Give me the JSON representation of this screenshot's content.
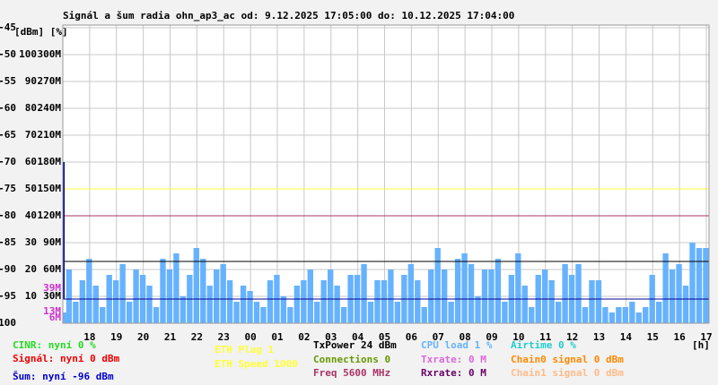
{
  "chart_data": {
    "type": "bar",
    "title": "Signál a šum radia ohn_ap3_ac od: 9.12.2025 17:05:00 do: 10.12.2025 17:04:00",
    "y_header": "[dBm] [%]",
    "x_label": "[h]",
    "ylim": [
      -100,
      -45
    ],
    "yticks": [
      -45,
      -50,
      -55,
      -60,
      -65,
      -70,
      -75,
      -80,
      -85,
      -90,
      -95,
      -100
    ],
    "y2lim": [
      0,
      110
    ],
    "y2ticks": [
      10,
      20,
      30,
      40,
      50,
      60,
      70,
      80,
      90,
      100
    ],
    "y3lim": [
      0,
      330
    ],
    "y3ticks": [
      {
        "value": 30,
        "label": "30M"
      },
      {
        "value": 60,
        "label": "60M"
      },
      {
        "value": 90,
        "label": "90M"
      },
      {
        "value": 120,
        "label": "120M"
      },
      {
        "value": 150,
        "label": "150M"
      },
      {
        "value": 180,
        "label": "180M"
      },
      {
        "value": 210,
        "label": "210M"
      },
      {
        "value": 240,
        "label": "240M"
      },
      {
        "value": 270,
        "label": "270M"
      },
      {
        "value": 300,
        "label": "300M"
      }
    ],
    "y3_markers": {
      "color": "#cc33cc",
      "ticks": [
        {
          "value": 39,
          "label": "39M"
        },
        {
          "value": 13,
          "label": "13M"
        },
        {
          "value": 6,
          "label": "6M"
        }
      ]
    },
    "grid": true,
    "categories": [
      null,
      null,
      null,
      null,
      "18",
      null,
      null,
      null,
      "19",
      null,
      null,
      null,
      "20",
      null,
      null,
      null,
      "21",
      null,
      null,
      null,
      "22",
      null,
      null,
      null,
      "23",
      null,
      null,
      null,
      "00",
      null,
      null,
      null,
      "01",
      null,
      null,
      null,
      "02",
      null,
      null,
      null,
      "03",
      null,
      null,
      null,
      "04",
      null,
      null,
      null,
      "05",
      null,
      null,
      null,
      "06",
      null,
      null,
      null,
      "07",
      null,
      null,
      null,
      "08",
      null,
      null,
      null,
      "09",
      null,
      null,
      null,
      "10",
      null,
      null,
      null,
      "11",
      null,
      null,
      null,
      "12",
      null,
      null,
      null,
      "13",
      null,
      null,
      null,
      "14",
      null,
      null,
      null,
      "15",
      null,
      null,
      null,
      "16",
      null,
      null,
      null,
      "17"
    ],
    "color": "#66b2ff",
    "values": [
      -98,
      -90,
      -96,
      -92,
      -88,
      -93,
      -97,
      -91,
      -92,
      -89,
      -96,
      -90,
      -91,
      -93,
      -97,
      -88,
      -90,
      -87,
      -95,
      -91,
      -86,
      -88,
      -93,
      -90,
      -89,
      -92,
      -96,
      -93,
      -94,
      -96,
      -97,
      -92,
      -91,
      -95,
      -97,
      -93,
      -92,
      -90,
      -96,
      -92,
      -90,
      -93,
      -97,
      -91,
      -91,
      -89,
      -96,
      -92,
      -92,
      -90,
      -96,
      -91,
      -89,
      -92,
      -97,
      -90,
      -86,
      -90,
      -96,
      -88,
      -87,
      -89,
      -95,
      -90,
      -90,
      -88,
      -96,
      -91,
      -87,
      -93,
      -97,
      -91,
      -90,
      -92,
      -96,
      -89,
      -91,
      -89,
      -97,
      -92,
      -92,
      -97,
      -98,
      -97,
      -97,
      -96,
      -98,
      -97,
      -91,
      -96,
      -87,
      -90,
      -89,
      -93,
      -85,
      -86,
      -86
    ],
    "reference_lines": [
      {
        "value": -75,
        "color": "#ffff33"
      },
      {
        "value": -80,
        "color": "#aa3366"
      },
      {
        "value": -88.5,
        "color": "#000000"
      },
      {
        "value": -95.5,
        "color": "#000099"
      }
    ],
    "start_spike": {
      "value": -70,
      "color": "#000099"
    },
    "legend": [
      {
        "text": "CINR: nyní 0 %",
        "color": "#22dd22"
      },
      {
        "text": "Signál: nyní 0 dBm",
        "color": "#ee0000"
      },
      {
        "text": "Šum: nyní -96 dBm",
        "color": "#0000cc"
      },
      {
        "text": "ETH Plug 1",
        "color": "#ffff33"
      },
      {
        "text": "ETH Speed 1000",
        "color": "#ffff33"
      },
      {
        "text": "TxPower 24 dBm",
        "color": "#000000"
      },
      {
        "text": "Connections 0",
        "color": "#669900"
      },
      {
        "text": "Freq 5600 MHz",
        "color": "#aa3366"
      },
      {
        "text": "CPU load 1 %",
        "color": "#66b2ff"
      },
      {
        "text": "Txrate: 0 M",
        "color": "#dd66dd"
      },
      {
        "text": "Rxrate: 0 M",
        "color": "#660066"
      },
      {
        "text": "Airtime 0 %",
        "color": "#22cccc"
      },
      {
        "text": "Chain0 signal 0 dBm",
        "color": "#ff8800"
      },
      {
        "text": "Chain1 signal 0 dBm",
        "color": "#ffbb88"
      }
    ]
  }
}
